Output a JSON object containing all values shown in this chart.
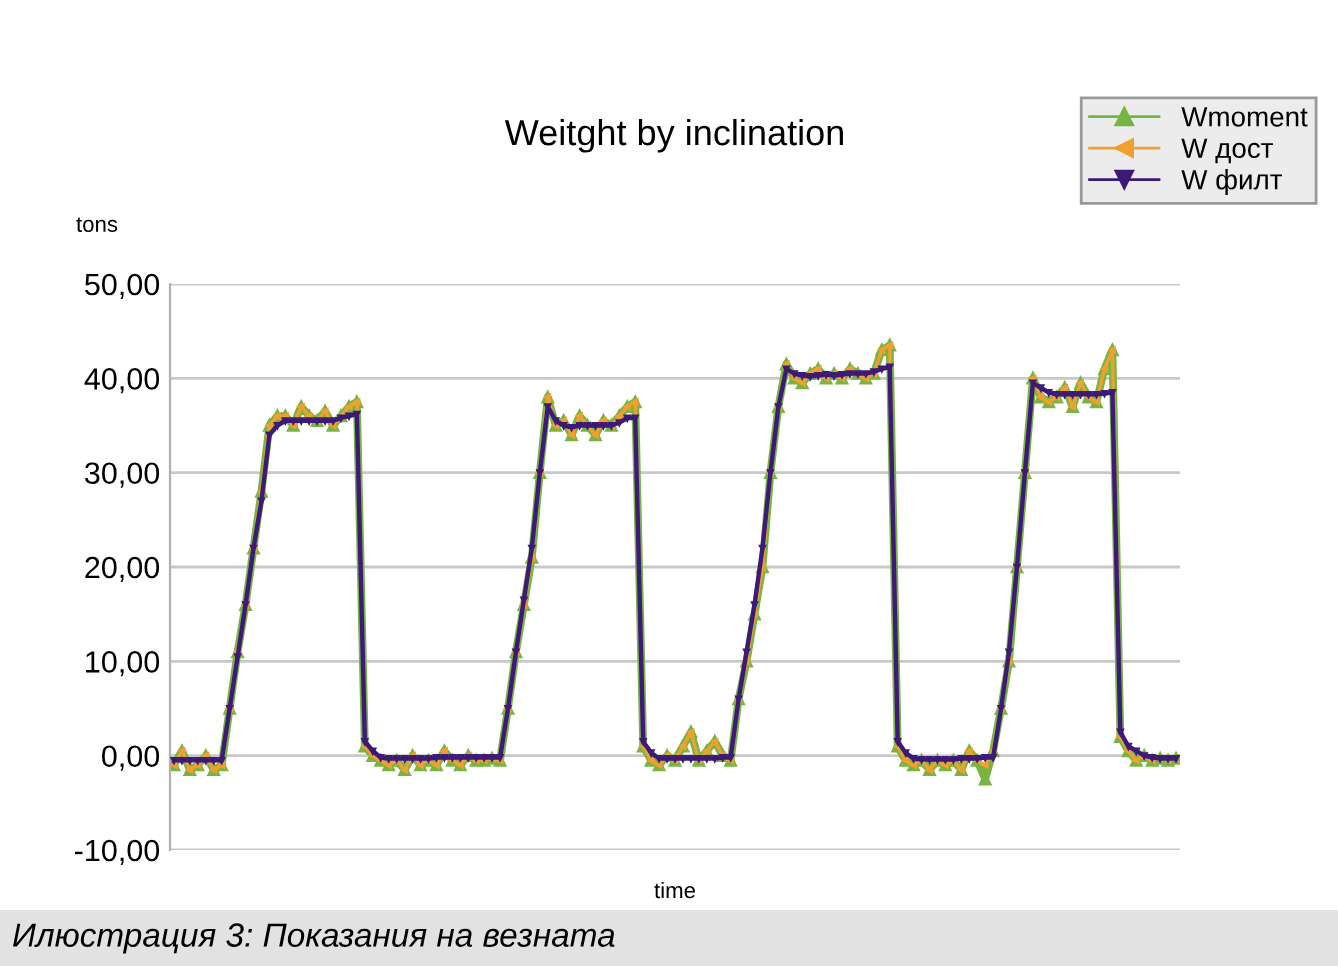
{
  "chart_data": {
    "type": "line",
    "title": "Weitght by inclination",
    "xlabel": "time",
    "ylabel": "tons",
    "annotations": [
      "Илюстрация 3: Показания на везната"
    ],
    "categories": [
      null,
      null,
      null,
      null,
      null,
      null,
      null,
      null,
      null,
      null,
      null,
      null,
      null,
      null,
      null,
      null,
      null,
      null,
      null,
      null,
      null,
      null,
      null,
      null,
      null,
      null,
      null,
      null,
      null,
      null,
      null,
      null,
      null,
      null,
      null,
      null,
      null,
      null,
      null,
      null,
      null,
      null,
      null,
      null,
      null,
      null,
      null,
      null,
      null,
      null,
      null,
      null,
      null,
      null,
      null,
      null,
      null,
      null,
      null,
      null,
      null,
      null,
      null,
      null,
      null,
      null,
      null,
      null,
      null,
      null,
      null,
      null,
      null,
      null,
      null,
      null,
      null,
      null,
      null,
      null,
      null,
      null,
      null,
      null,
      null,
      null,
      null,
      null,
      null,
      null,
      null,
      null,
      null,
      null,
      null,
      null,
      null,
      null,
      null,
      null,
      null,
      null,
      null,
      null,
      null,
      null,
      null,
      null,
      null,
      null,
      null,
      null,
      null,
      null,
      null,
      null,
      null,
      null,
      null,
      null,
      null,
      null,
      null,
      null,
      null,
      null,
      null
    ],
    "series": [
      {
        "name": "Wmoment",
        "color": "#77b543",
        "values": [
          -1,
          0.5,
          -1.5,
          -1,
          0,
          -1.5,
          -1,
          5,
          11,
          16,
          22,
          28,
          35,
          36,
          36,
          35,
          37,
          36,
          35.5,
          36.5,
          35,
          36,
          37,
          37.5,
          1,
          0,
          -0.5,
          -1,
          -0.5,
          -1.5,
          0,
          -1,
          -0.5,
          -1,
          0.5,
          -0.5,
          -1,
          0,
          -0.5,
          -0.5,
          -0.3,
          -0.5,
          5,
          11,
          16,
          21,
          30,
          38,
          35,
          35.5,
          34,
          36,
          35,
          34,
          35.5,
          35,
          36,
          37,
          37.5,
          1,
          -0.5,
          -1,
          0,
          -0.5,
          1,
          2.5,
          -0.5,
          0.5,
          1.5,
          0,
          -0.5,
          6,
          10,
          15,
          20,
          30,
          37,
          41.5,
          40,
          39.5,
          40.5,
          41,
          40,
          40.5,
          40,
          41,
          40.5,
          40,
          40.5,
          43,
          43.5,
          1,
          -0.5,
          -1,
          -0.5,
          -1.5,
          -0.5,
          -1,
          -0.5,
          -1.5,
          0.5,
          -0.5,
          -2.5,
          0.5,
          5,
          10,
          20,
          30,
          40,
          38,
          37.5,
          38,
          39,
          37,
          39.5,
          38,
          37.5,
          41,
          43,
          2,
          0.5,
          -0.5,
          0,
          -0.5,
          -0.3,
          -0.5,
          -0.3
        ]
      },
      {
        "name": "W дост",
        "color": "#f0a030",
        "values": [
          -1,
          0.5,
          -1.5,
          -1,
          0,
          -1.5,
          -1,
          5,
          11,
          16,
          22,
          28,
          35,
          36,
          36,
          35,
          37,
          36,
          35.5,
          36.5,
          35,
          36,
          37,
          37.5,
          1,
          0,
          -0.5,
          -1,
          -0.5,
          -1.5,
          0,
          -1,
          -0.5,
          -1,
          0.5,
          -0.5,
          -1,
          0,
          -0.5,
          -0.5,
          -0.3,
          -0.5,
          5,
          11,
          16,
          21,
          30,
          38,
          35,
          35.5,
          34,
          36,
          35,
          34,
          35.5,
          35,
          36,
          37,
          37.5,
          1,
          -0.5,
          -1,
          0,
          -0.5,
          1,
          2.5,
          -0.5,
          0.5,
          1.5,
          0,
          -0.5,
          6,
          10,
          15,
          20,
          30,
          37,
          41.5,
          40,
          39.5,
          40.5,
          41,
          40,
          40.5,
          40,
          41,
          40.5,
          40,
          40.5,
          43,
          43.5,
          1,
          -0.5,
          -1,
          -0.5,
          -1.5,
          -0.5,
          -1,
          -0.5,
          -1.5,
          0.5,
          -0.5,
          -1,
          0.5,
          5,
          10,
          20,
          30,
          40,
          38,
          37.5,
          38,
          39,
          37,
          39.5,
          38,
          37.5,
          41,
          43,
          2,
          0.5,
          -0.5,
          0,
          -0.5,
          -0.3,
          -0.5,
          -0.3
        ]
      },
      {
        "name": "W филт",
        "color": "#3d1a78",
        "values": [
          -0.5,
          -0.5,
          -0.5,
          -0.5,
          -0.5,
          -0.5,
          -0.5,
          5,
          10.5,
          16,
          22,
          27,
          34,
          35,
          35.5,
          35.5,
          35.5,
          35.5,
          35.5,
          35.5,
          35.5,
          35.8,
          36,
          36.2,
          1.5,
          0.5,
          -0.2,
          -0.3,
          -0.3,
          -0.3,
          -0.3,
          -0.3,
          -0.3,
          -0.2,
          -0.2,
          -0.2,
          -0.2,
          -0.2,
          -0.2,
          -0.2,
          -0.2,
          -0.2,
          5,
          11,
          16.5,
          22,
          30,
          37,
          35.5,
          35,
          34.8,
          35,
          35,
          35,
          35,
          35,
          35.3,
          35.8,
          35.8,
          1.5,
          0.3,
          -0.3,
          -0.3,
          -0.3,
          -0.3,
          -0.3,
          -0.3,
          -0.3,
          -0.3,
          -0.2,
          -0.2,
          6,
          11,
          16,
          22,
          30,
          37,
          41,
          40.5,
          40.3,
          40.2,
          40.3,
          40.4,
          40.3,
          40.4,
          40.5,
          40.5,
          40.5,
          40.7,
          41,
          41.2,
          1.5,
          0.3,
          -0.3,
          -0.4,
          -0.4,
          -0.4,
          -0.4,
          -0.4,
          -0.3,
          -0.3,
          -0.3,
          -0.2,
          -0.2,
          5,
          11,
          20,
          30,
          39.5,
          39,
          38.5,
          38.3,
          38.3,
          38.3,
          38.3,
          38.3,
          38.3,
          38.4,
          38.5,
          2.5,
          1,
          0.5,
          0,
          -0.2,
          -0.3,
          -0.3,
          -0.3
        ]
      }
    ],
    "ylim": [
      -10,
      50
    ],
    "yticks": [
      {
        "value": -10,
        "label": "-10,00"
      },
      {
        "value": 0,
        "label": "0,00"
      },
      {
        "value": 10,
        "label": "10,00"
      },
      {
        "value": 20,
        "label": "20,00"
      },
      {
        "value": 30,
        "label": "30,00"
      },
      {
        "value": 40,
        "label": "40,00"
      },
      {
        "value": 50,
        "label": "50,00"
      }
    ],
    "grid": "y",
    "legend": "top right",
    "marker": "triangle",
    "line_style": "solid"
  }
}
